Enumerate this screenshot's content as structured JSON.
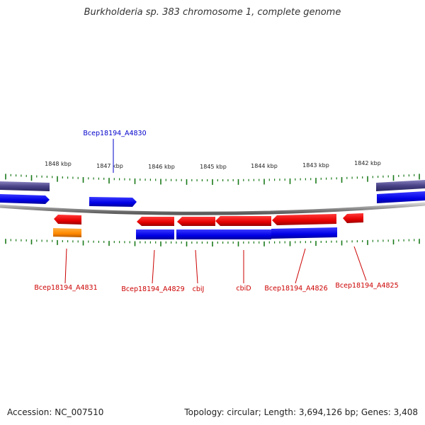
{
  "title": "Burkholderia sp. 383 chromosome 1, complete genome",
  "footer": {
    "accession": "Accession: NC_007510",
    "summary": "Topology: circular; Length: 3,694,126 bp; Genes: 3,408"
  },
  "colors": {
    "forward_gene": "#0000ee",
    "reverse_gene": "#ee0000",
    "feature_orange": "#ff8800",
    "track_purple": "#4a4488",
    "backbone": "#8c8c8c",
    "tick": "#1a7a1a",
    "label_forward": "#0000cc",
    "label_reverse": "#cc0000"
  },
  "scale": {
    "unit": "kbp",
    "labels": [
      "1848 kbp",
      "1847 kbp",
      "1846 kbp",
      "1845 kbp",
      "1844 kbp",
      "1843 kbp",
      "1842 kbp"
    ]
  },
  "genes": [
    {
      "id": "fwd-left-edge",
      "strand": "+",
      "row": "outer",
      "label": ""
    },
    {
      "id": "Bcep18194_A4830",
      "strand": "+",
      "row": "outer",
      "label": "Bcep18194_A4830"
    },
    {
      "id": "fwd-right-edge",
      "strand": "+",
      "row": "outer",
      "label": ""
    },
    {
      "id": "Bcep18194_A4831",
      "strand": "-",
      "row": "inner",
      "label": "Bcep18194_A4831"
    },
    {
      "id": "Bcep18194_A4831-feature",
      "strand": "-",
      "row": "feature",
      "label": ""
    },
    {
      "id": "Bcep18194_A4829",
      "strand": "-",
      "row": "inner",
      "label": "Bcep18194_A4829"
    },
    {
      "id": "cbiJ",
      "strand": "-",
      "row": "inner",
      "label": "cbiJ"
    },
    {
      "id": "cbiD",
      "strand": "-",
      "row": "inner",
      "label": "cbiD"
    },
    {
      "id": "Bcep18194_A4826",
      "strand": "-",
      "row": "inner",
      "label": "Bcep18194_A4826"
    },
    {
      "id": "Bcep18194_A4825",
      "strand": "-",
      "row": "inner",
      "label": "Bcep18194_A4825"
    }
  ]
}
